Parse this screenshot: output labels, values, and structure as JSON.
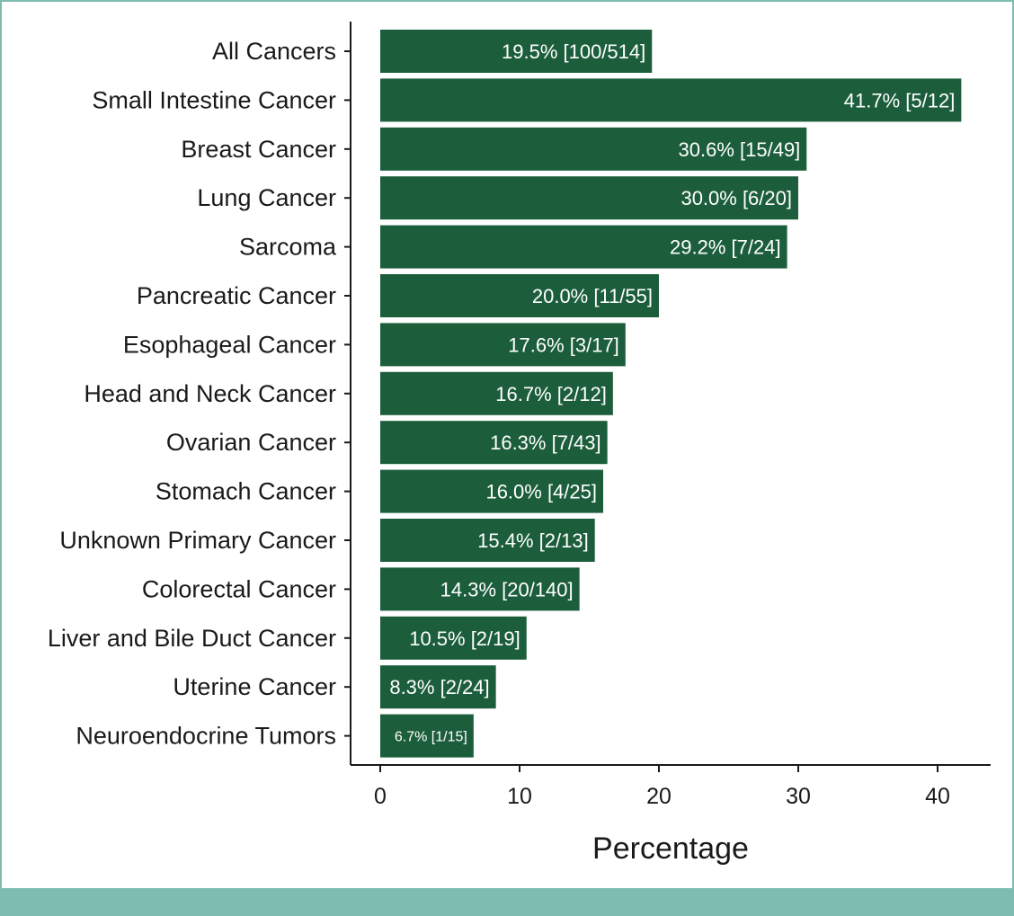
{
  "colors": {
    "bar": "#1c5e3b",
    "frame": "#7fbcb0",
    "footer_band": "#7fbcb0",
    "axis": "#1a1a1a"
  },
  "chart_data": {
    "type": "bar",
    "orientation": "horizontal",
    "title": "",
    "xlabel": "Percentage",
    "ylabel": "",
    "xlim": [
      0,
      44
    ],
    "x_ticks": [
      0,
      10,
      20,
      30,
      40
    ],
    "categories": [
      "All Cancers",
      "Small Intestine Cancer",
      "Breast Cancer",
      "Lung Cancer",
      "Sarcoma",
      "Pancreatic Cancer",
      "Esophageal Cancer",
      "Head and Neck Cancer",
      "Ovarian Cancer",
      "Stomach Cancer",
      "Unknown Primary Cancer",
      "Colorectal Cancer",
      "Liver and Bile Duct Cancer",
      "Uterine Cancer",
      "Neuroendocrine Tumors"
    ],
    "values": [
      19.5,
      41.7,
      30.6,
      30.0,
      29.2,
      20.0,
      17.6,
      16.7,
      16.3,
      16.0,
      15.4,
      14.3,
      10.5,
      8.3,
      6.7
    ],
    "data_labels": [
      "19.5% [100/514]",
      "41.7% [5/12]",
      "30.6% [15/49]",
      "30.0% [6/20]",
      "29.2% [7/24]",
      "20.0% [11/55]",
      "17.6% [3/17]",
      "16.7% [2/12]",
      "16.3% [7/43]",
      "16.0% [4/25]",
      "15.4% [2/13]",
      "14.3% [20/140]",
      "10.5% [2/19]",
      "8.3% [2/24]",
      "6.7% [1/15]"
    ],
    "grid": false,
    "legend": "none"
  }
}
